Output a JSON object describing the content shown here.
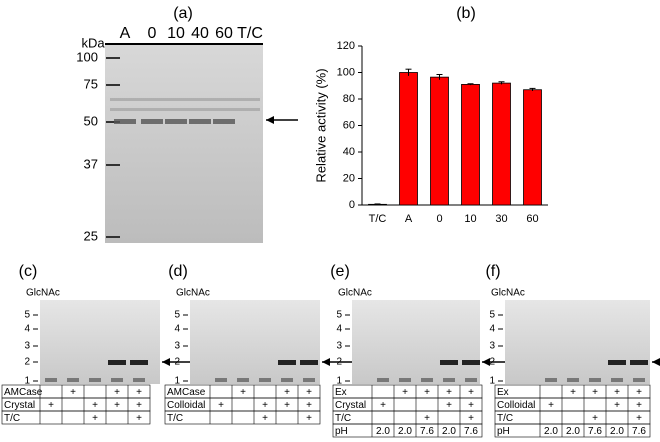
{
  "panel_a": {
    "label": "(a)",
    "unit": "kDa",
    "lanes": [
      "A",
      "0",
      "10",
      "40",
      "60",
      "T/C"
    ],
    "markers": [
      "100",
      "75",
      "50",
      "37",
      "25"
    ]
  },
  "chart_data": {
    "type": "bar",
    "label": "(b)",
    "ylabel": "Relative activity (%)",
    "categories": [
      "T/C",
      "A",
      "0",
      "10",
      "30",
      "60"
    ],
    "values": [
      0.5,
      100,
      96.5,
      91,
      92,
      87
    ],
    "errors": [
      0.3,
      2.5,
      2,
      0.5,
      1,
      1
    ],
    "color": "#ff0000",
    "ylim": [
      0,
      120
    ],
    "yticks": [
      0,
      20,
      40,
      60,
      80,
      100,
      120
    ]
  },
  "gels": [
    {
      "label": "(c)",
      "title": "GlcNAc",
      "ladder": [
        "5",
        "4",
        "3",
        "2",
        "1"
      ],
      "rows": [
        {
          "name": "AMCase",
          "cells": [
            null,
            "+",
            null,
            "+",
            "+"
          ]
        },
        {
          "name": "Crystal",
          "cells": [
            "+",
            null,
            "+",
            "+",
            "+"
          ]
        },
        {
          "name": "T/C",
          "cells": [
            null,
            null,
            "+",
            null,
            "+"
          ]
        }
      ]
    },
    {
      "label": "(d)",
      "title": "GlcNAc",
      "ladder": [
        "5",
        "4",
        "3",
        "2",
        "1"
      ],
      "rows": [
        {
          "name": "AMCase",
          "cells": [
            null,
            "+",
            null,
            "+",
            "+"
          ]
        },
        {
          "name": "Colloidal",
          "cells": [
            "+",
            null,
            "+",
            "+",
            "+"
          ]
        },
        {
          "name": "T/C",
          "cells": [
            null,
            null,
            "+",
            null,
            "+"
          ]
        }
      ]
    },
    {
      "label": "(e)",
      "title": "GlcNAc",
      "ladder": [
        "5",
        "4",
        "3",
        "2",
        "1"
      ],
      "rows": [
        {
          "name": "Ex",
          "cells": [
            null,
            "+",
            "+",
            "+",
            "+"
          ]
        },
        {
          "name": "Crystal",
          "cells": [
            "+",
            null,
            null,
            "+",
            "+"
          ]
        },
        {
          "name": "T/C",
          "cells": [
            null,
            null,
            "+",
            null,
            "+"
          ]
        },
        {
          "name": "pH",
          "cells": [
            "2.0",
            "2.0",
            "7.6",
            "2.0",
            "7.6"
          ]
        }
      ]
    },
    {
      "label": "(f)",
      "title": "GlcNAc",
      "ladder": [
        "5",
        "4",
        "3",
        "2",
        "1"
      ],
      "rows": [
        {
          "name": "Ex",
          "cells": [
            null,
            "+",
            "+",
            "+",
            "+"
          ]
        },
        {
          "name": "Colloidal",
          "cells": [
            "+",
            null,
            null,
            "+",
            "+"
          ]
        },
        {
          "name": "T/C",
          "cells": [
            null,
            null,
            "+",
            null,
            "+"
          ]
        },
        {
          "name": "pH",
          "cells": [
            "2.0",
            "2.0",
            "7.6",
            "2.0",
            "7.6"
          ]
        }
      ]
    }
  ]
}
